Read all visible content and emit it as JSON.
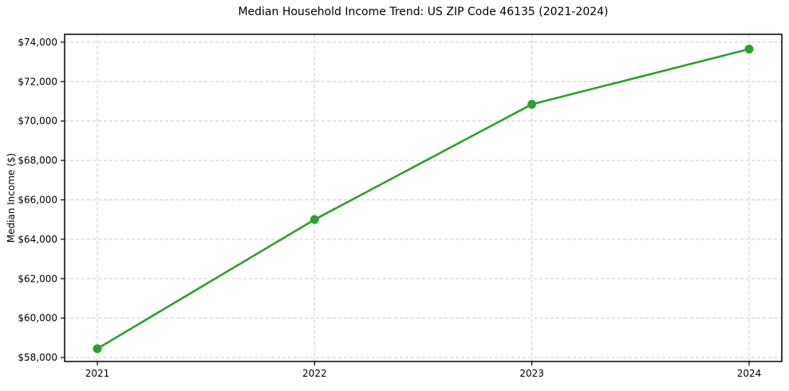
{
  "chart_data": {
    "type": "line",
    "title": "Median Household Income Trend: US ZIP Code 46135 (2021-2024)",
    "xlabel": "",
    "ylabel": "Median Income ($)",
    "categories": [
      "2021",
      "2022",
      "2023",
      "2024"
    ],
    "series": [
      {
        "name": "Median Household Income",
        "values": [
          58450,
          65000,
          70850,
          73650
        ]
      }
    ],
    "y_ticks": [
      58000,
      60000,
      62000,
      64000,
      66000,
      68000,
      70000,
      72000,
      74000
    ],
    "y_tick_labels": [
      "$58,000",
      "$60,000",
      "$62,000",
      "$64,000",
      "$66,000",
      "$68,000",
      "$70,000",
      "$72,000",
      "$74,000"
    ],
    "ylim": [
      57800,
      74400
    ],
    "grid": "dashed",
    "legend": "none",
    "line_color": "#2ca02c",
    "marker": "circle",
    "grid_color": "#cccccc",
    "axis_color": "#000000",
    "background": "#ffffff"
  }
}
